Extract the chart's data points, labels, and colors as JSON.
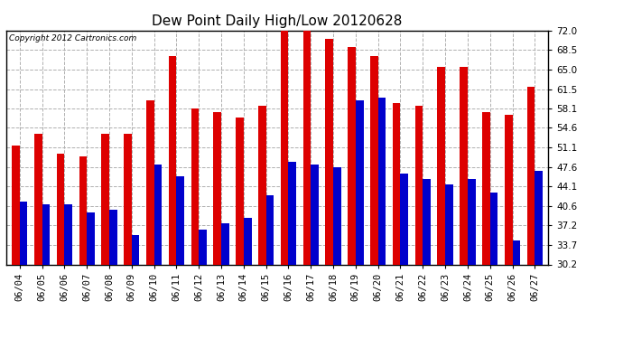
{
  "title": "Dew Point Daily High/Low 20120628",
  "copyright": "Copyright 2012 Cartronics.com",
  "dates": [
    "06/04",
    "06/05",
    "06/06",
    "06/07",
    "06/08",
    "06/09",
    "06/10",
    "06/11",
    "06/12",
    "06/13",
    "06/14",
    "06/15",
    "06/16",
    "06/17",
    "06/18",
    "06/19",
    "06/20",
    "06/21",
    "06/22",
    "06/23",
    "06/24",
    "06/25",
    "06/26",
    "06/27"
  ],
  "high": [
    51.5,
    53.5,
    50.0,
    49.5,
    53.5,
    53.5,
    59.5,
    67.5,
    58.0,
    57.5,
    56.5,
    58.5,
    72.0,
    72.0,
    70.5,
    69.0,
    67.5,
    59.0,
    58.5,
    65.5,
    65.5,
    57.5,
    57.0,
    62.0
  ],
  "low": [
    41.5,
    41.0,
    41.0,
    39.5,
    40.0,
    35.5,
    48.0,
    46.0,
    36.5,
    37.5,
    38.5,
    42.5,
    48.5,
    48.0,
    47.5,
    59.5,
    60.0,
    46.5,
    45.5,
    44.5,
    45.5,
    43.0,
    34.5,
    47.0
  ],
  "bar_color_high": "#dd0000",
  "bar_color_low": "#0000cc",
  "bg_color": "#ffffff",
  "grid_color": "#b0b0b0",
  "ymin": 30.2,
  "ymax": 72.0,
  "yticks": [
    30.2,
    33.7,
    37.2,
    40.6,
    44.1,
    47.6,
    51.1,
    54.6,
    58.1,
    61.5,
    65.0,
    68.5,
    72.0
  ],
  "title_fontsize": 11,
  "copyright_fontsize": 6.5,
  "tick_fontsize": 7.5,
  "bar_width": 0.35
}
